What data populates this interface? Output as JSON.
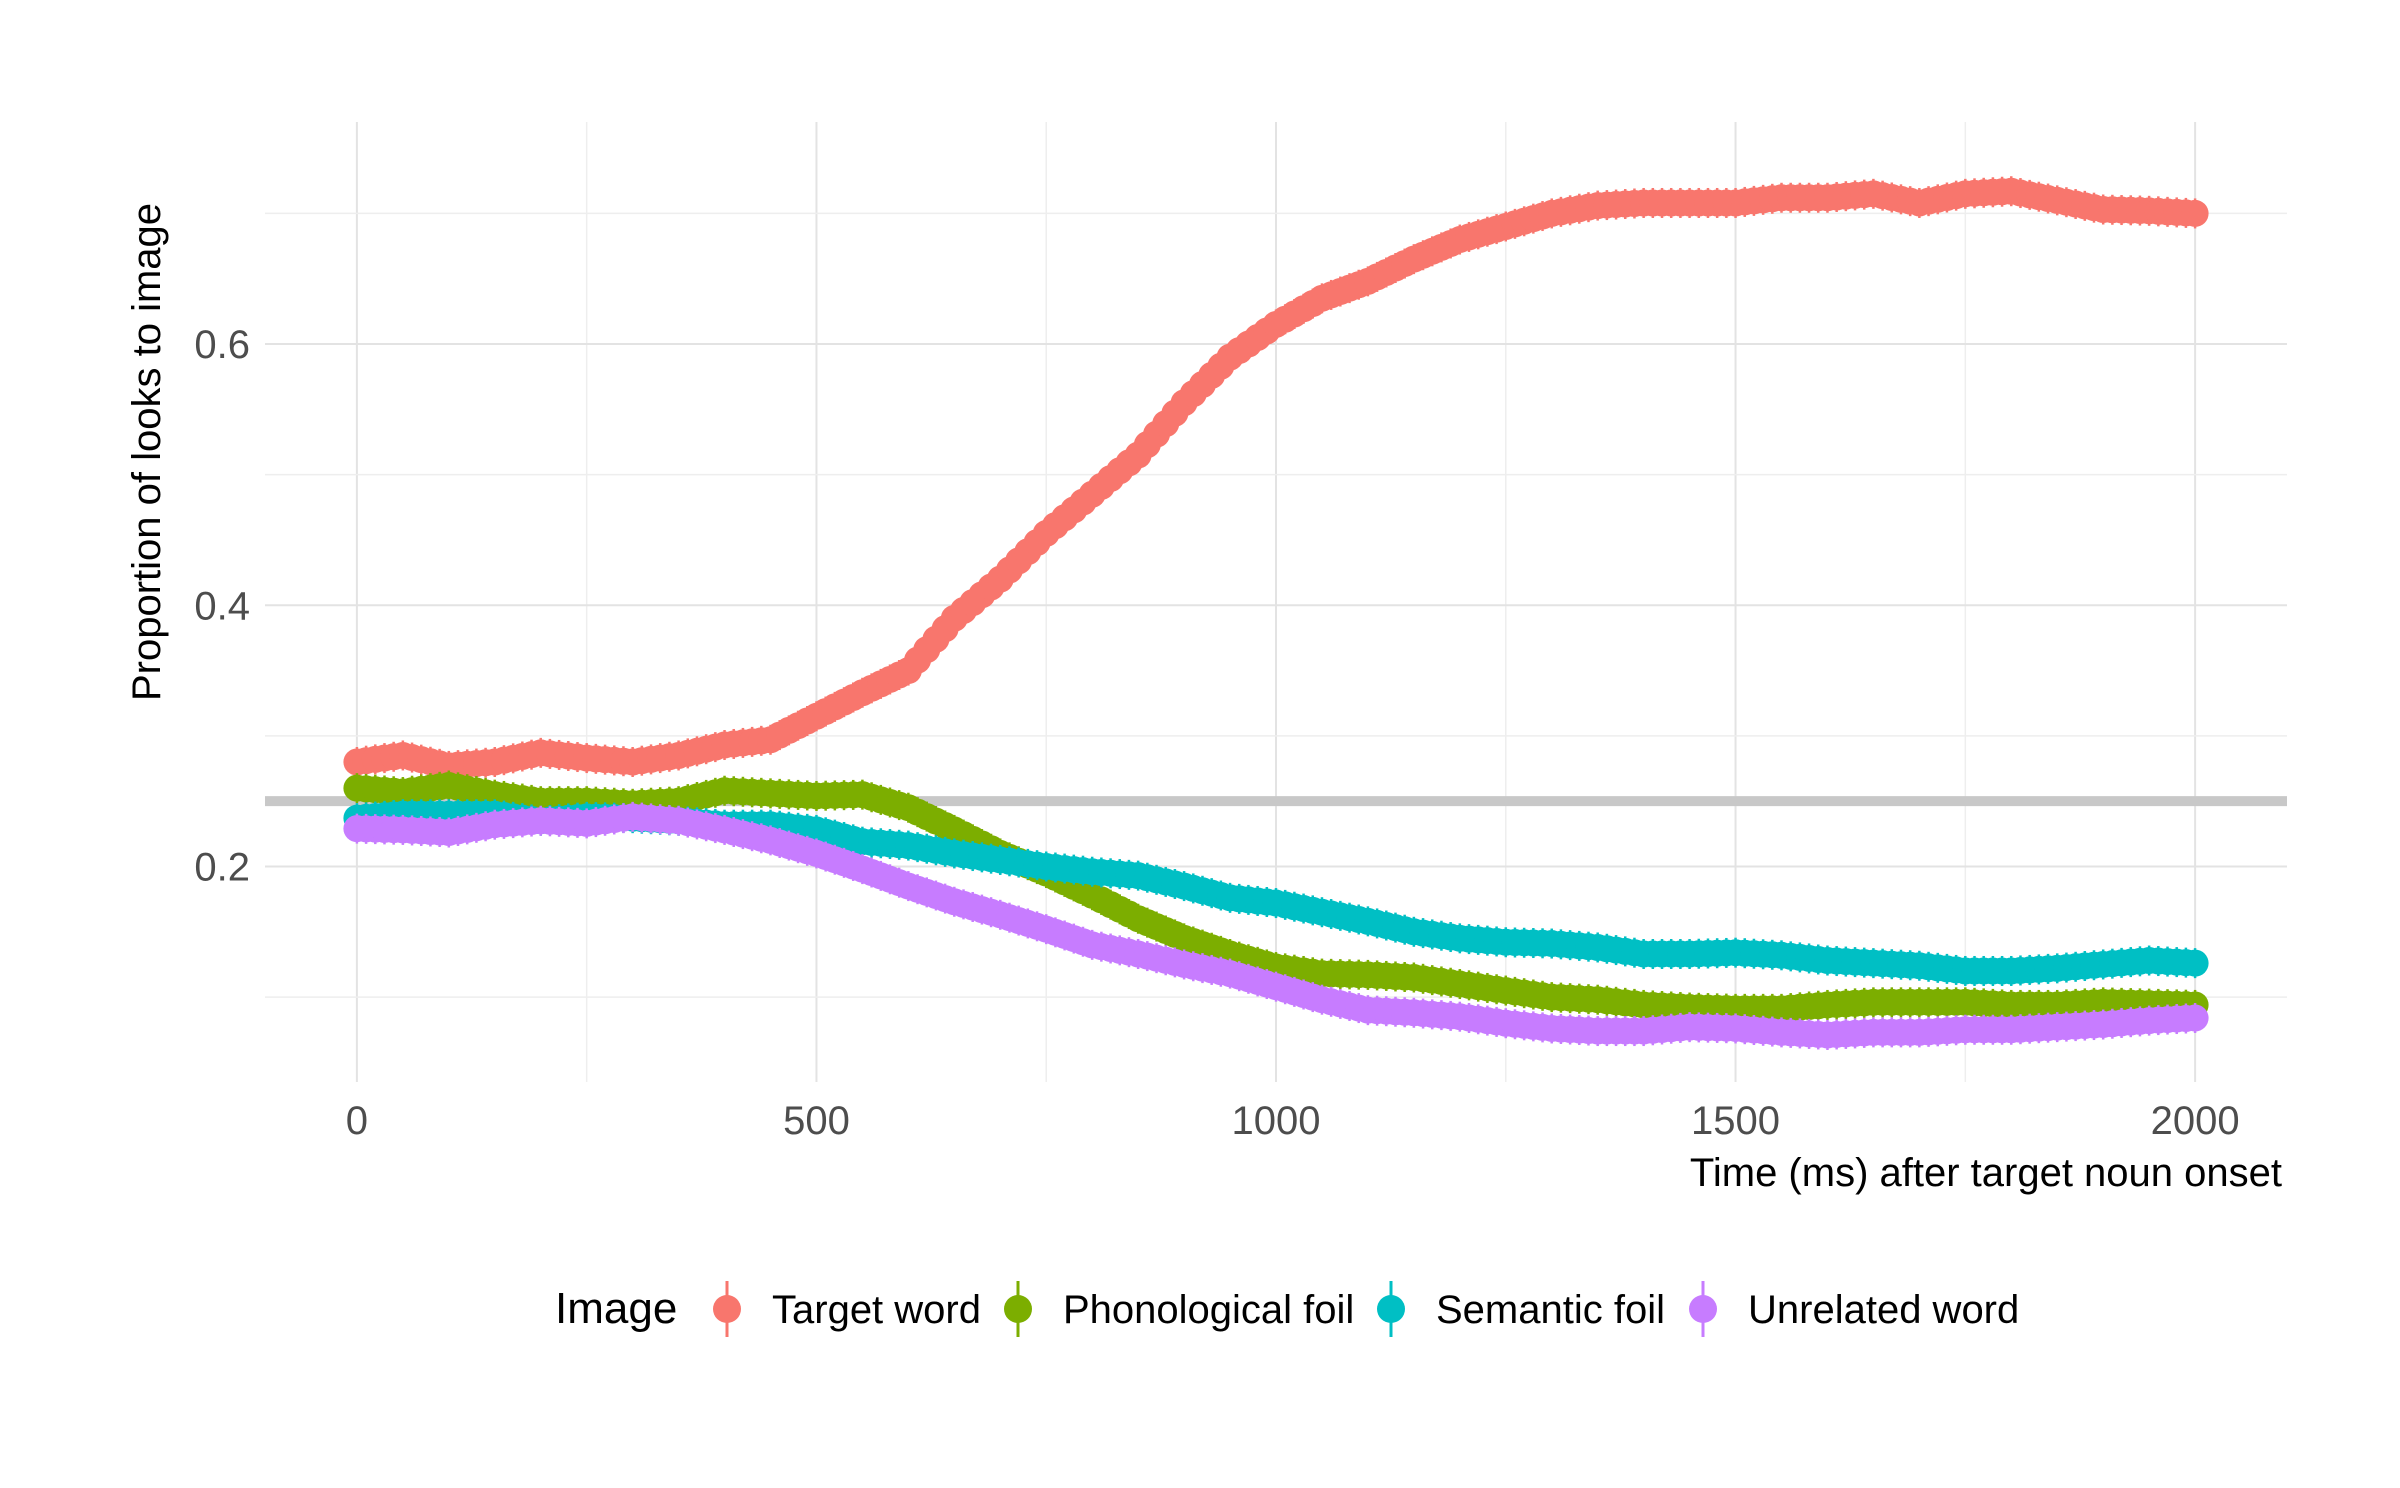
{
  "chart_data": {
    "type": "line",
    "xlabel": "Time (ms) after target noun onset",
    "ylabel": "Proportion of looks to image",
    "xlim": [
      -100,
      2100
    ],
    "ylim": [
      0.035,
      0.77
    ],
    "x_ticks": [
      0,
      500,
      1000,
      1500,
      2000
    ],
    "y_ticks": [
      0.2,
      0.4,
      0.6
    ],
    "x_tick_labels": [
      "0",
      "500",
      "1000",
      "1500",
      "2000"
    ],
    "y_tick_labels": [
      "0.2",
      "0.4",
      "0.6"
    ],
    "grid": true,
    "chance_level": 0.25,
    "legend": {
      "title": "Image",
      "position": "bottom"
    },
    "x": [
      0,
      50,
      100,
      150,
      200,
      250,
      300,
      350,
      400,
      450,
      500,
      550,
      600,
      650,
      700,
      750,
      800,
      850,
      900,
      950,
      1000,
      1050,
      1100,
      1150,
      1200,
      1250,
      1300,
      1350,
      1400,
      1450,
      1500,
      1550,
      1600,
      1650,
      1700,
      1750,
      1800,
      1850,
      1900,
      1950,
      2000
    ],
    "series": [
      {
        "name": "Target word",
        "color": "#F8766D",
        "values": [
          0.28,
          0.285,
          0.277,
          0.28,
          0.287,
          0.283,
          0.28,
          0.285,
          0.293,
          0.297,
          0.315,
          0.333,
          0.35,
          0.39,
          0.42,
          0.455,
          0.485,
          0.515,
          0.555,
          0.59,
          0.615,
          0.635,
          0.648,
          0.665,
          0.68,
          0.69,
          0.7,
          0.706,
          0.708,
          0.708,
          0.708,
          0.712,
          0.712,
          0.715,
          0.708,
          0.715,
          0.717,
          0.71,
          0.703,
          0.702,
          0.7
        ]
      },
      {
        "name": "Phonological foil",
        "color": "#7CAE00",
        "values": [
          0.26,
          0.257,
          0.262,
          0.255,
          0.25,
          0.25,
          0.248,
          0.25,
          0.258,
          0.256,
          0.254,
          0.255,
          0.245,
          0.228,
          0.21,
          0.195,
          0.178,
          0.16,
          0.145,
          0.133,
          0.123,
          0.118,
          0.117,
          0.115,
          0.11,
          0.105,
          0.1,
          0.098,
          0.094,
          0.092,
          0.091,
          0.091,
          0.094,
          0.096,
          0.096,
          0.096,
          0.094,
          0.094,
          0.096,
          0.095,
          0.094
        ]
      },
      {
        "name": "Semantic foil",
        "color": "#00BFC4",
        "values": [
          0.237,
          0.24,
          0.24,
          0.24,
          0.235,
          0.238,
          0.237,
          0.235,
          0.232,
          0.232,
          0.228,
          0.219,
          0.216,
          0.21,
          0.205,
          0.2,
          0.196,
          0.193,
          0.185,
          0.176,
          0.172,
          0.165,
          0.158,
          0.15,
          0.145,
          0.142,
          0.141,
          0.138,
          0.133,
          0.133,
          0.134,
          0.132,
          0.128,
          0.126,
          0.124,
          0.12,
          0.12,
          0.122,
          0.125,
          0.128,
          0.126
        ]
      },
      {
        "name": "Unrelated word",
        "color": "#C77CFF",
        "values": [
          0.229,
          0.228,
          0.226,
          0.232,
          0.235,
          0.233,
          0.238,
          0.235,
          0.228,
          0.22,
          0.21,
          0.198,
          0.185,
          0.173,
          0.163,
          0.152,
          0.14,
          0.133,
          0.125,
          0.118,
          0.108,
          0.098,
          0.09,
          0.088,
          0.085,
          0.08,
          0.076,
          0.074,
          0.074,
          0.077,
          0.076,
          0.073,
          0.071,
          0.073,
          0.073,
          0.075,
          0.075,
          0.077,
          0.079,
          0.082,
          0.084
        ]
      }
    ]
  }
}
